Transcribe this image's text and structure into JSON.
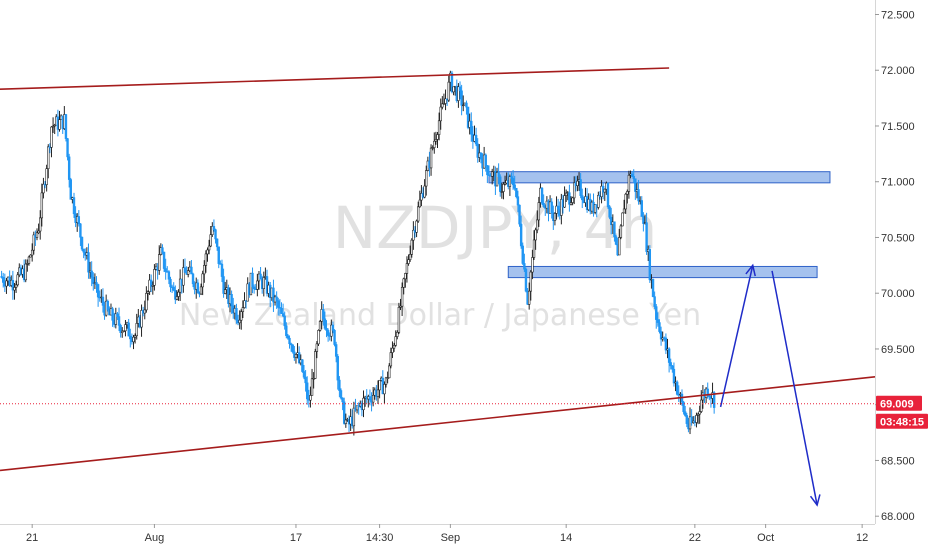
{
  "chart_data": {
    "type": "candlestick",
    "watermark": {
      "symbol": "NZDJPY, 4h",
      "description": "New Zealand Dollar / Japanese Yen"
    },
    "y_axis": {
      "ylim": [
        67.93,
        72.63
      ],
      "ticks": [
        "72.500",
        "72.000",
        "71.500",
        "71.000",
        "70.500",
        "70.000",
        "69.500",
        "69.000",
        "68.500",
        "68.000"
      ],
      "tick_values": [
        72.5,
        72.0,
        71.5,
        71.0,
        70.5,
        70.0,
        69.5,
        69.0,
        68.5,
        68.0
      ],
      "side": "right"
    },
    "x_axis": {
      "range": [
        0,
        136
      ],
      "ticks": [
        {
          "label": "21",
          "x": 5
        },
        {
          "label": "Aug",
          "x": 24
        },
        {
          "label": "17",
          "x": 46
        },
        {
          "label": "14:30",
          "x": 59
        },
        {
          "label": "Sep",
          "x": 70
        },
        {
          "label": "14",
          "x": 88
        },
        {
          "label": "22",
          "x": 108
        },
        {
          "label": "Oct",
          "x": 119
        },
        {
          "label": "12",
          "x": 134
        }
      ]
    },
    "price_anchors": [
      [
        0,
        70.15
      ],
      [
        2,
        70.1
      ],
      [
        4,
        70.2
      ],
      [
        6,
        70.6
      ],
      [
        8,
        71.5
      ],
      [
        10,
        71.55
      ],
      [
        11,
        70.9
      ],
      [
        13,
        70.4
      ],
      [
        15,
        70.0
      ],
      [
        17,
        69.8
      ],
      [
        19,
        69.7
      ],
      [
        21,
        69.62
      ],
      [
        23,
        70.0
      ],
      [
        25,
        70.35
      ],
      [
        27,
        70.0
      ],
      [
        29,
        70.2
      ],
      [
        31,
        70.05
      ],
      [
        33,
        70.6
      ],
      [
        35,
        70.0
      ],
      [
        37,
        69.8
      ],
      [
        39,
        70.1
      ],
      [
        41,
        70.1
      ],
      [
        43,
        69.9
      ],
      [
        45,
        69.6
      ],
      [
        47,
        69.3
      ],
      [
        48,
        69.0
      ],
      [
        50,
        69.8
      ],
      [
        52,
        69.6
      ],
      [
        53,
        69.0
      ],
      [
        54,
        68.8
      ],
      [
        56,
        69.0
      ],
      [
        58,
        69.1
      ],
      [
        60,
        69.2
      ],
      [
        62,
        69.8
      ],
      [
        64,
        70.5
      ],
      [
        66,
        71.0
      ],
      [
        68,
        71.5
      ],
      [
        70,
        71.9
      ],
      [
        72,
        71.7
      ],
      [
        74,
        71.3
      ],
      [
        76,
        71.1
      ],
      [
        78,
        70.95
      ],
      [
        80,
        71.0
      ],
      [
        82,
        69.95
      ],
      [
        84,
        70.9
      ],
      [
        86,
        70.7
      ],
      [
        88,
        70.85
      ],
      [
        90,
        70.95
      ],
      [
        92,
        70.75
      ],
      [
        94,
        71.0
      ],
      [
        96,
        70.3
      ],
      [
        97,
        70.8
      ],
      [
        98,
        71.1
      ],
      [
        100,
        70.7
      ],
      [
        101,
        70.2
      ],
      [
        102,
        69.8
      ],
      [
        104,
        69.4
      ],
      [
        105,
        69.2
      ],
      [
        106,
        69.0
      ],
      [
        107,
        68.8
      ],
      [
        108,
        68.85
      ],
      [
        109,
        69.05
      ],
      [
        110,
        69.15
      ],
      [
        111,
        69.05
      ]
    ],
    "trend_lines": [
      {
        "color": "#a51c1c",
        "from": [
          0,
          71.83
        ],
        "to": [
          104,
          72.02
        ]
      },
      {
        "color": "#a51c1c",
        "from": [
          0,
          68.41
        ],
        "to": [
          136,
          69.25
        ]
      }
    ],
    "zones": [
      {
        "color": "#5b8fe0",
        "x": [
          76,
          129
        ],
        "y": [
          70.99,
          71.09
        ]
      },
      {
        "color": "#5b8fe0",
        "x": [
          79,
          127
        ],
        "y": [
          70.14,
          70.24
        ]
      }
    ],
    "projection": {
      "color": "#1f2cc8",
      "points": [
        [
          112,
          68.98
        ],
        [
          117,
          70.25
        ],
        [
          120,
          70.2
        ],
        [
          127,
          68.1
        ]
      ]
    },
    "last_price": {
      "value": "69.009",
      "countdown": "03:48:15",
      "color": "#e8223a"
    }
  }
}
